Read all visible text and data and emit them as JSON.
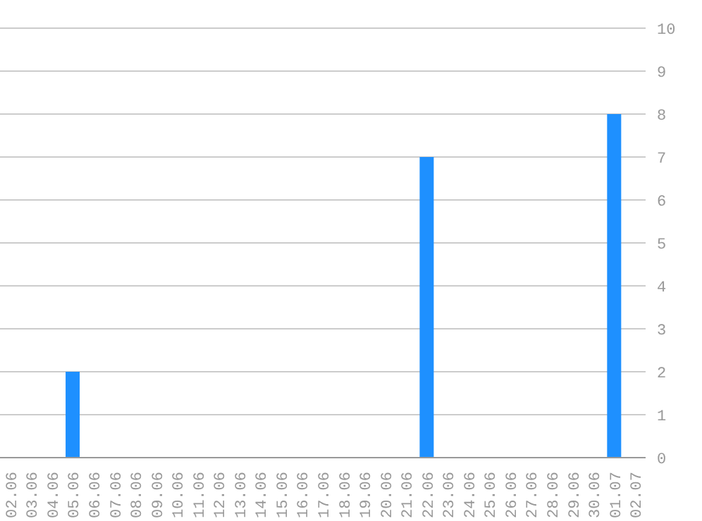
{
  "chart_data": {
    "type": "bar",
    "categories": [
      "02.06",
      "03.06",
      "04.06",
      "05.06",
      "06.06",
      "07.06",
      "08.06",
      "09.06",
      "10.06",
      "11.06",
      "12.06",
      "13.06",
      "14.06",
      "15.06",
      "16.06",
      "17.06",
      "18.06",
      "19.06",
      "20.06",
      "21.06",
      "22.06",
      "23.06",
      "24.06",
      "25.06",
      "26.06",
      "27.06",
      "28.06",
      "29.06",
      "30.06",
      "01.07",
      "02.07"
    ],
    "values": [
      0,
      0,
      0,
      2,
      0,
      0,
      0,
      0,
      0,
      0,
      0,
      0,
      0,
      0,
      0,
      0,
      0,
      0,
      0,
      0,
      7,
      0,
      0,
      0,
      0,
      0,
      0,
      0,
      0,
      8,
      0
    ],
    "color": "#1e90ff",
    "ylim": [
      0,
      10
    ],
    "yticks": [
      0,
      1,
      2,
      3,
      4,
      5,
      6,
      7,
      8,
      9,
      10
    ],
    "grid": "y"
  }
}
